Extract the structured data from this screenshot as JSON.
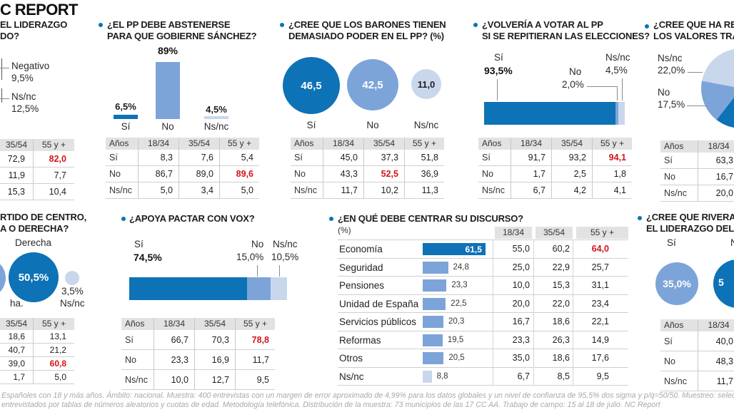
{
  "masthead": "C REPORT",
  "colors": {
    "dark_blue": "#0d72b6",
    "mid_blue": "#7da4d9",
    "light_blue": "#c9d7ec",
    "red": "#d2151b",
    "table_header_gray": "#e2e2e2",
    "grid_line": "#cfcfcf"
  },
  "panels": {
    "liderazgo": {
      "title_line1": "EL LIDERAZGO",
      "title_line2": "DO?",
      "callout1_label": "Negativo",
      "callout1_value": "9,5%",
      "callout2_label": "Ns/nc",
      "callout2_value": "12,5%",
      "table": {
        "label_col": false,
        "headers": [
          "35/54",
          "55 y +"
        ],
        "rows": [
          [
            "72,9",
            "82,0"
          ],
          [
            "11,9",
            "7,7"
          ],
          [
            "15,3",
            "10,4"
          ]
        ],
        "red": [
          [
            0,
            1
          ]
        ]
      }
    },
    "abstenerse": {
      "title_line1": "¿EL PP DEBE ABSTENERSE",
      "title_line2": "PARA QUE GOBIERNE SÁNCHEZ?",
      "bar1_value": "6,5%",
      "bar1_label": "Sí",
      "bar2_value": "89%",
      "bar2_label": "No",
      "bar3_value": "4,5%",
      "bar3_label": "Ns/nc",
      "table": {
        "label_col": true,
        "headers": [
          "Años",
          "18/34",
          "35/54",
          "55 y +"
        ],
        "rows": [
          [
            "Sí",
            "8,3",
            "7,6",
            "5,4"
          ],
          [
            "No",
            "86,7",
            "89,0",
            "89,6"
          ],
          [
            "Ns/nc",
            "5,0",
            "3,4",
            "5,0"
          ]
        ],
        "red": [
          [
            1,
            3
          ]
        ]
      }
    },
    "barones": {
      "title_line1": "¿CREE QUE LOS BARONES TIENEN",
      "title_line2": "DEMASIADO PODER EN EL PP? (%)",
      "bubble1_value": "46,5",
      "bubble1_label": "Sí",
      "bubble2_value": "42,5",
      "bubble2_label": "No",
      "bubble3_value": "11,0",
      "bubble3_label": "Ns/nc",
      "table": {
        "label_col": true,
        "headers": [
          "Años",
          "18/34",
          "35/54",
          "55 y +"
        ],
        "rows": [
          [
            "Sí",
            "45,0",
            "37,3",
            "51,8"
          ],
          [
            "No",
            "43,3",
            "52,5",
            "36,9"
          ],
          [
            "Ns/nc",
            "11,7",
            "10,2",
            "11,3"
          ]
        ],
        "red": [
          [
            1,
            2
          ]
        ]
      }
    },
    "volveria": {
      "title_line1": "¿VOLVERÍA A VOTAR AL PP",
      "title_line2": "SI SE REPITIERAN LAS ELECCIONES?",
      "seg1_label": "Sí",
      "seg1_value": "93,5%",
      "seg2_label": "No",
      "seg2_value": "2,0%",
      "seg3_label": "Ns/nc",
      "seg3_value": "4,5%",
      "table": {
        "label_col": true,
        "headers": [
          "Años",
          "18/34",
          "35/54",
          "55 y +"
        ],
        "rows": [
          [
            "Sí",
            "91,7",
            "93,2",
            "94,1"
          ],
          [
            "No",
            "1,7",
            "2,5",
            "1,8"
          ],
          [
            "Ns/nc",
            "6,7",
            "4,2",
            "4,1"
          ]
        ],
        "red": [
          [
            0,
            3
          ]
        ]
      }
    },
    "valores": {
      "title_line1": "¿CREE QUE HA RECU",
      "title_line2": "LOS VALORES TRAD",
      "callout1_label": "Ns/nc",
      "callout1_value": "22,0%",
      "callout2_label": "No",
      "callout2_value": "17,5%",
      "table": {
        "label_col": true,
        "headers": [
          "Años",
          "18/34"
        ],
        "rows": [
          [
            "Sí",
            "63,3"
          ],
          [
            "No",
            "16,7"
          ],
          [
            "Ns/nc",
            "20,0"
          ]
        ],
        "red": []
      }
    },
    "centro": {
      "title_line1": "RTIDO DE CENTRO,",
      "title_line2": "A O DERECHA?",
      "big_label": "Derecha",
      "big_value": "50,5%",
      "cut_label": "ha.",
      "small_value": "3,5%",
      "small_label": "Ns/nc",
      "table": {
        "label_col": false,
        "headers": [
          "35/54",
          "55 y +"
        ],
        "rows": [
          [
            "18,6",
            "13,1"
          ],
          [
            "40,7",
            "21,2"
          ],
          [
            "39,0",
            "60,8"
          ],
          [
            "1,7",
            "5,0"
          ]
        ],
        "red": [
          [
            2,
            1
          ]
        ]
      }
    },
    "vox": {
      "title": "¿APOYA PACTAR CON VOX?",
      "seg1_label": "Sí",
      "seg1_value": "74,5%",
      "seg2_label": "No",
      "seg2_value": "15,0%",
      "seg3_label": "Ns/nc",
      "seg3_value": "10,5%",
      "table": {
        "label_col": true,
        "headers": [
          "Años",
          "18/34",
          "35/54",
          "55 y +"
        ],
        "rows": [
          [
            "Sí",
            "66,7",
            "70,3",
            "78,8"
          ],
          [
            "No",
            "23,3",
            "16,9",
            "11,7"
          ],
          [
            "Ns/nc",
            "10,0",
            "12,7",
            "9,5"
          ]
        ],
        "red": [
          [
            0,
            3
          ]
        ]
      }
    },
    "discurso": {
      "title": "¿EN QUÉ DEBE CENTRAR SU DISCURSO?",
      "subtitle": "(%)",
      "age_headers": [
        "18/34",
        "35/54",
        "55 y +"
      ],
      "rows": [
        {
          "label": "Economía",
          "value": "61,5",
          "num": 61.5,
          "ages": [
            "55,0",
            "60,2",
            "64,0"
          ],
          "red_age": 2,
          "emphasis": true
        },
        {
          "label": "Seguridad",
          "value": "24,8",
          "num": 24.8,
          "ages": [
            "25,0",
            "22,9",
            "25,7"
          ],
          "red_age": -1
        },
        {
          "label": "Pensiones",
          "value": "23,3",
          "num": 23.3,
          "ages": [
            "10,0",
            "15,3",
            "31,1"
          ],
          "red_age": -1
        },
        {
          "label": "Unidad de España",
          "value": "22,5",
          "num": 22.5,
          "ages": [
            "20,0",
            "22,0",
            "23,4"
          ],
          "red_age": -1
        },
        {
          "label": "Servicios públicos",
          "value": "20,3",
          "num": 20.3,
          "ages": [
            "16,7",
            "18,6",
            "22,1"
          ],
          "red_age": -1
        },
        {
          "label": "Reformas",
          "value": "19,5",
          "num": 19.5,
          "ages": [
            "23,3",
            "26,3",
            "14,9"
          ],
          "red_age": -1
        },
        {
          "label": "Otros",
          "value": "20,5",
          "num": 20.5,
          "ages": [
            "35,0",
            "18,6",
            "17,6"
          ],
          "red_age": -1
        },
        {
          "label": "Ns/nc",
          "value": "8,8",
          "num": 8.8,
          "ages": [
            "6,7",
            "8,5",
            "9,5"
          ],
          "red_age": -1,
          "light": true
        }
      ]
    },
    "rivera": {
      "title_line1": "¿CREE QUE RIVERA",
      "title_line2": "EL LIDERAZGO DEL",
      "si_label": "Sí",
      "si_value": "35,0%",
      "cut_no_label": "No",
      "cut_value": "5",
      "table": {
        "label_col": true,
        "headers": [
          "Años",
          "18/34"
        ],
        "rows": [
          [
            "Sí",
            "40,0"
          ],
          [
            "No",
            "48,3"
          ],
          [
            "Ns/nc",
            "11,7"
          ]
        ],
        "red": []
      }
    }
  },
  "footer": {
    "line1": "Españoles con 18 y más años. Ámbito: nacional. Muestra: 400 entrevistas con un margen de error aproximado de 4,99% para los datos globales y un nivel de confianza de 95,5% dos sigma y p/q=50/50. Muestreo: selecció",
    "line2": "entrevistados por tablas de números aleatorios y cuotas de edad. Metodología telefónica. Distribución de la muestra: 73 municipios de las 17 CC AA. Trabajo de campo: 15 al 18 de julio. NC Report"
  },
  "chart_data": [
    {
      "type": "pie",
      "title": "EL LIDERAZGO …DO? (recortado)",
      "labels": [
        "Negativo",
        "Ns/nc"
      ],
      "values": [
        9.5,
        12.5
      ],
      "age_table": {
        "columns": [
          "35/54",
          "55 y +"
        ],
        "rows": [
          [
            72.9,
            82.0
          ],
          [
            11.9,
            7.7
          ],
          [
            15.3,
            10.4
          ]
        ]
      }
    },
    {
      "type": "bar",
      "title": "¿EL PP DEBE ABSTENERSE PARA QUE GOBIERNE SÁNCHEZ?",
      "categories": [
        "Sí",
        "No",
        "Ns/nc"
      ],
      "values": [
        6.5,
        89,
        4.5
      ],
      "age_table": {
        "columns": [
          "18/34",
          "35/54",
          "55 y +"
        ],
        "rows": [
          {
            "label": "Sí",
            "values": [
              8.3,
              7.6,
              5.4
            ]
          },
          {
            "label": "No",
            "values": [
              86.7,
              89.0,
              89.6
            ]
          },
          {
            "label": "Ns/nc",
            "values": [
              5.0,
              3.4,
              5.0
            ]
          }
        ]
      }
    },
    {
      "type": "bar",
      "style": "proportional-circles",
      "title": "¿CREE QUE LOS BARONES TIENEN DEMASIADO PODER EN EL PP? (%)",
      "categories": [
        "Sí",
        "No",
        "Ns/nc"
      ],
      "values": [
        46.5,
        42.5,
        11.0
      ],
      "age_table": {
        "columns": [
          "18/34",
          "35/54",
          "55 y +"
        ],
        "rows": [
          {
            "label": "Sí",
            "values": [
              45.0,
              37.3,
              51.8
            ]
          },
          {
            "label": "No",
            "values": [
              43.3,
              52.5,
              36.9
            ]
          },
          {
            "label": "Ns/nc",
            "values": [
              11.7,
              10.2,
              11.3
            ]
          }
        ]
      }
    },
    {
      "type": "bar",
      "style": "stacked-horizontal",
      "title": "¿VOLVERÍA A VOTAR AL PP SI SE REPITIERAN LAS ELECCIONES?",
      "categories": [
        "Sí",
        "No",
        "Ns/nc"
      ],
      "values": [
        93.5,
        2.0,
        4.5
      ],
      "age_table": {
        "columns": [
          "18/34",
          "35/54",
          "55 y +"
        ],
        "rows": [
          {
            "label": "Sí",
            "values": [
              91.7,
              93.2,
              94.1
            ]
          },
          {
            "label": "No",
            "values": [
              1.7,
              2.5,
              1.8
            ]
          },
          {
            "label": "Ns/nc",
            "values": [
              6.7,
              4.2,
              4.1
            ]
          }
        ]
      }
    },
    {
      "type": "pie",
      "title": "¿CREE QUE HA RECU… LOS VALORES TRAD… (recortado)",
      "labels": [
        "Ns/nc",
        "No"
      ],
      "values": [
        22.0,
        17.5
      ],
      "age_table": {
        "columns": [
          "18/34"
        ],
        "rows": [
          {
            "label": "Sí",
            "values": [
              63.3
            ]
          },
          {
            "label": "No",
            "values": [
              16.7
            ]
          },
          {
            "label": "Ns/nc",
            "values": [
              20.0
            ]
          }
        ]
      }
    },
    {
      "type": "bar",
      "style": "proportional-circles",
      "title": "…RTIDO DE CENTRO, …A O DERECHA? (recortado)",
      "categories": [
        "Derecha",
        "Ns/nc"
      ],
      "values": [
        50.5,
        3.5
      ],
      "age_table": {
        "columns": [
          "35/54",
          "55 y +"
        ],
        "rows": [
          [
            18.6,
            13.1
          ],
          [
            40.7,
            21.2
          ],
          [
            39.0,
            60.8
          ],
          [
            1.7,
            5.0
          ]
        ]
      }
    },
    {
      "type": "bar",
      "style": "stacked-horizontal",
      "title": "¿APOYA PACTAR CON VOX?",
      "categories": [
        "Sí",
        "No",
        "Ns/nc"
      ],
      "values": [
        74.5,
        15.0,
        10.5
      ],
      "age_table": {
        "columns": [
          "18/34",
          "35/54",
          "55 y +"
        ],
        "rows": [
          {
            "label": "Sí",
            "values": [
              66.7,
              70.3,
              78.8
            ]
          },
          {
            "label": "No",
            "values": [
              23.3,
              16.9,
              11.7
            ]
          },
          {
            "label": "Ns/nc",
            "values": [
              10.0,
              12.7,
              9.5
            ]
          }
        ]
      }
    },
    {
      "type": "bar",
      "style": "horizontal",
      "title": "¿EN QUÉ DEBE CENTRAR SU DISCURSO? (%)",
      "categories": [
        "Economía",
        "Seguridad",
        "Pensiones",
        "Unidad de España",
        "Servicios públicos",
        "Reformas",
        "Otros",
        "Ns/nc"
      ],
      "values": [
        61.5,
        24.8,
        23.3,
        22.5,
        20.3,
        19.5,
        20.5,
        8.8
      ],
      "series": [
        {
          "name": "18/34",
          "values": [
            55.0,
            25.0,
            10.0,
            20.0,
            16.7,
            23.3,
            35.0,
            6.7
          ]
        },
        {
          "name": "35/54",
          "values": [
            60.2,
            22.9,
            15.3,
            22.0,
            18.6,
            26.3,
            18.6,
            8.5
          ]
        },
        {
          "name": "55 y +",
          "values": [
            64.0,
            25.7,
            31.1,
            23.4,
            22.1,
            14.9,
            17.6,
            9.5
          ]
        }
      ]
    },
    {
      "type": "bar",
      "style": "proportional-circles",
      "title": "¿CREE QUE RIVERA … EL LIDERAZGO DEL … (recortado)",
      "categories": [
        "Sí"
      ],
      "values": [
        35.0
      ],
      "age_table": {
        "columns": [
          "18/34"
        ],
        "rows": [
          {
            "label": "Sí",
            "values": [
              40.0
            ]
          },
          {
            "label": "No",
            "values": [
              48.3
            ]
          },
          {
            "label": "Ns/nc",
            "values": [
              11.7
            ]
          }
        ]
      }
    }
  ]
}
